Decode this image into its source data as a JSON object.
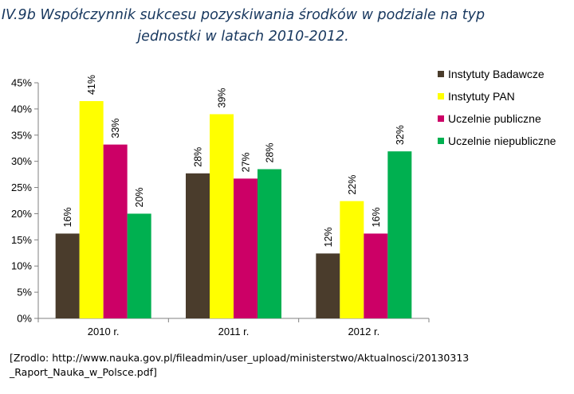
{
  "title_lines": [
    "IV.9b Współczynnik sukcesu pozyskiwania środków w podziale na typ",
    "jednostki w latach 2010-2012."
  ],
  "source_lines": [
    "[Zrodlo: http://www.nauka.gov.pl/fileadmin/user_upload/ministerstwo/Aktualnosci/20130313",
    "_Raport_Nauka_w_Polsce.pdf]"
  ],
  "chart_data": {
    "type": "bar",
    "title": "IV.9b Współczynnik sukcesu pozyskiwania środków w podziale na typ jednostki w latach 2010-2012.",
    "categories": [
      "2010 r.",
      "2011 r.",
      "2012 r."
    ],
    "series": [
      {
        "name": "Instytuty Badawcze",
        "color": "#4a3c2c",
        "values": [
          16,
          28,
          12
        ],
        "display_values": [
          16.2,
          27.7,
          12.4
        ]
      },
      {
        "name": "Instytuty PAN",
        "color": "#ffff00",
        "values": [
          41,
          39,
          22
        ],
        "display_values": [
          41.5,
          39.0,
          22.4
        ]
      },
      {
        "name": "Uczelnie publiczne",
        "color": "#cc0066",
        "values": [
          33,
          27,
          16
        ],
        "display_values": [
          33.2,
          26.7,
          16.2
        ]
      },
      {
        "name": "Uczelnie niepubliczne",
        "color": "#00b050",
        "values": [
          20,
          28,
          32
        ],
        "display_values": [
          20.0,
          28.5,
          31.9
        ]
      }
    ],
    "data_label_suffix": "%",
    "y_ticks": [
      "0%",
      "5%",
      "10%",
      "15%",
      "20%",
      "25%",
      "30%",
      "35%",
      "40%",
      "45%"
    ],
    "ylim": [
      0,
      45
    ],
    "ystep": 5,
    "xlabel": "",
    "ylabel": "",
    "grid": false,
    "legend_position": "right"
  }
}
